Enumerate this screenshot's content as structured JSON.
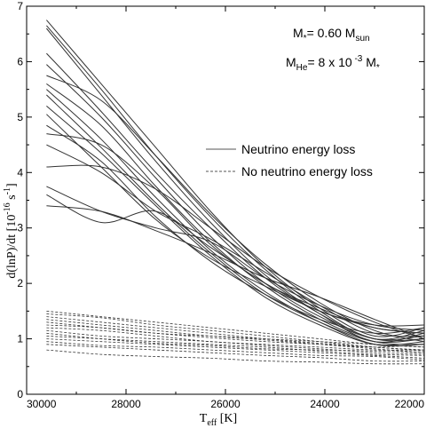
{
  "chart_data": {
    "type": "line",
    "xlabel": "T",
    "xlabel_sub": "eff",
    "xlabel_unit": " [K]",
    "ylabel": "d(lnP)/dt  [10",
    "ylabel_sup": "-16",
    "ylabel_tail": " s",
    "ylabel_sup2": "-1",
    "ylabel_close": "]",
    "xlim": [
      30000,
      22000
    ],
    "ylim": [
      0,
      7
    ],
    "x_ticks": [
      30000,
      28000,
      26000,
      24000,
      22000
    ],
    "y_ticks": [
      0,
      1,
      2,
      3,
      4,
      5,
      6,
      7
    ],
    "annotations": {
      "mass": {
        "text": "M",
        "sub1": "*",
        "mid": "= 0.60 M",
        "sub2": "sun"
      },
      "helium": {
        "text": "M",
        "sub1": "He",
        "mid": "= 8 x 10",
        "sup": " -3",
        "tail": " M",
        "sub2": "*"
      }
    },
    "legend": {
      "placement": "center-right",
      "entries": [
        {
          "label": "Neutrino energy loss",
          "style": "solid"
        },
        {
          "label": "No neutrino energy loss",
          "style": "dashed"
        }
      ]
    },
    "grid": false,
    "line_color": "#333333",
    "series": [
      {
        "style": "solid",
        "x": [
          29600,
          28500,
          27400,
          26300,
          25200,
          24100,
          23000,
          22000
        ],
        "values": [
          6.75,
          5.6,
          4.45,
          3.3,
          2.3,
          1.55,
          1.05,
          1.2
        ]
      },
      {
        "style": "solid",
        "x": [
          29600,
          28500,
          27400,
          26300,
          25200,
          24100,
          23000,
          22000
        ],
        "values": [
          6.65,
          5.5,
          4.3,
          3.2,
          2.25,
          1.5,
          1.0,
          1.15
        ]
      },
      {
        "style": "solid",
        "x": [
          29600,
          28500,
          27400,
          26300,
          25200,
          24100,
          23000,
          22000
        ],
        "values": [
          6.6,
          5.4,
          4.2,
          3.1,
          2.15,
          1.45,
          0.95,
          1.1
        ]
      },
      {
        "style": "solid",
        "x": [
          29600,
          28500,
          27400,
          26300,
          25200,
          24100,
          23000,
          22000
        ],
        "values": [
          6.15,
          5.1,
          4.0,
          3.0,
          2.1,
          1.45,
          1.0,
          1.0
        ]
      },
      {
        "style": "solid",
        "x": [
          29600,
          28500,
          27400,
          26300,
          25200,
          24100,
          23000,
          22000
        ],
        "values": [
          5.95,
          5.0,
          3.9,
          2.85,
          2.0,
          1.4,
          1.0,
          1.05
        ]
      },
      {
        "style": "solid",
        "x": [
          29600,
          28500,
          27400,
          26300,
          25200,
          24100,
          23000,
          22000
        ],
        "values": [
          5.75,
          5.3,
          4.3,
          3.25,
          2.35,
          1.65,
          1.15,
          0.95
        ]
      },
      {
        "style": "solid",
        "x": [
          29600,
          28500,
          27400,
          26300,
          25200,
          24100,
          23000,
          22000
        ],
        "values": [
          5.6,
          4.85,
          3.75,
          2.75,
          1.95,
          1.35,
          0.95,
          0.9
        ]
      },
      {
        "style": "solid",
        "x": [
          29600,
          28500,
          27400,
          26300,
          25200,
          24100,
          23000,
          22000
        ],
        "values": [
          5.5,
          4.6,
          3.55,
          2.6,
          1.85,
          1.3,
          0.9,
          0.9
        ]
      },
      {
        "style": "solid",
        "x": [
          29600,
          28500,
          27400,
          26300,
          25200,
          24100,
          23000,
          22000
        ],
        "values": [
          5.2,
          4.35,
          3.4,
          2.5,
          1.75,
          1.25,
          0.9,
          0.95
        ]
      },
      {
        "style": "solid",
        "x": [
          29600,
          28500,
          27400,
          26300,
          25200,
          24100,
          23000,
          22000
        ],
        "values": [
          4.85,
          4.2,
          3.2,
          2.4,
          1.8,
          1.35,
          1.1,
          1.2
        ]
      },
      {
        "style": "solid",
        "x": [
          29600,
          28500,
          27400,
          26300,
          25200,
          24100,
          23000,
          22000
        ],
        "values": [
          4.7,
          4.5,
          3.7,
          2.7,
          2.0,
          1.55,
          1.2,
          1.1
        ]
      },
      {
        "style": "solid",
        "x": [
          29600,
          28500,
          27400,
          26300,
          25200,
          24100,
          23000,
          22000
        ],
        "values": [
          4.5,
          4.0,
          3.3,
          2.8,
          2.2,
          1.6,
          1.1,
          1.05
        ]
      },
      {
        "style": "solid",
        "x": [
          29600,
          28500,
          27400,
          26300,
          25200,
          24100,
          23000,
          22000
        ],
        "values": [
          4.1,
          4.1,
          3.7,
          3.0,
          2.3,
          1.75,
          1.3,
          1.0
        ]
      },
      {
        "style": "solid",
        "x": [
          29600,
          28500,
          27400,
          26300,
          25200,
          24100,
          23000,
          22000
        ],
        "values": [
          3.75,
          3.3,
          3.0,
          2.75,
          2.1,
          1.6,
          1.25,
          1.15
        ]
      },
      {
        "style": "solid",
        "x": [
          29600,
          28500,
          27400,
          26300,
          25200,
          24100,
          23000,
          22000
        ],
        "values": [
          3.6,
          3.1,
          3.3,
          2.65,
          2.0,
          1.5,
          1.25,
          1.25
        ]
      },
      {
        "style": "solid",
        "x": [
          29600,
          28500,
          27400,
          26300,
          25200,
          24100,
          23000,
          22000
        ],
        "values": [
          3.4,
          3.3,
          2.95,
          2.55,
          2.1,
          1.75,
          1.35,
          1.0
        ]
      },
      {
        "style": "solid",
        "x": [
          29600,
          28500,
          27400,
          26300,
          25200,
          24100,
          23000,
          22000
        ],
        "values": [
          5.05,
          4.1,
          3.15,
          2.45,
          1.95,
          1.5,
          1.2,
          1.1
        ]
      },
      {
        "style": "solid",
        "x": [
          29600,
          28500,
          27400,
          26300,
          25200,
          24100,
          23000,
          22000
        ],
        "values": [
          5.4,
          4.45,
          3.45,
          2.55,
          1.8,
          1.3,
          0.95,
          1.0
        ]
      },
      {
        "style": "dashed",
        "x": [
          29600,
          28500,
          27400,
          26300,
          25200,
          24100,
          23000,
          22000
        ],
        "values": [
          1.5,
          1.4,
          1.3,
          1.2,
          1.1,
          1.0,
          0.9,
          0.85
        ]
      },
      {
        "style": "dashed",
        "x": [
          29600,
          28500,
          27400,
          26300,
          25200,
          24100,
          23000,
          22000
        ],
        "values": [
          1.45,
          1.38,
          1.25,
          1.15,
          1.05,
          0.95,
          0.85,
          0.8
        ]
      },
      {
        "style": "dashed",
        "x": [
          29600,
          28500,
          27400,
          26300,
          25200,
          24100,
          23000,
          22000
        ],
        "values": [
          1.4,
          1.3,
          1.2,
          1.1,
          1.0,
          0.92,
          0.85,
          0.78
        ]
      },
      {
        "style": "dashed",
        "x": [
          29600,
          28500,
          27400,
          26300,
          25200,
          24100,
          23000,
          22000
        ],
        "values": [
          1.35,
          1.25,
          1.15,
          1.05,
          0.98,
          0.9,
          0.82,
          0.75
        ]
      },
      {
        "style": "dashed",
        "x": [
          29600,
          28500,
          27400,
          26300,
          25200,
          24100,
          23000,
          22000
        ],
        "values": [
          1.3,
          1.2,
          1.1,
          1.05,
          1.0,
          0.95,
          0.9,
          0.85
        ]
      },
      {
        "style": "dashed",
        "x": [
          29600,
          28500,
          27400,
          26300,
          25200,
          24100,
          23000,
          22000
        ],
        "values": [
          1.2,
          1.15,
          1.05,
          0.95,
          0.9,
          0.85,
          0.8,
          0.8
        ]
      },
      {
        "style": "dashed",
        "x": [
          29600,
          28500,
          27400,
          26300,
          25200,
          24100,
          23000,
          22000
        ],
        "values": [
          1.15,
          1.05,
          1.0,
          0.95,
          0.88,
          0.82,
          0.75,
          0.72
        ]
      },
      {
        "style": "dashed",
        "x": [
          29600,
          28500,
          27400,
          26300,
          25200,
          24100,
          23000,
          22000
        ],
        "values": [
          1.05,
          1.0,
          0.95,
          0.9,
          0.85,
          0.78,
          0.72,
          0.7
        ]
      },
      {
        "style": "dashed",
        "x": [
          29600,
          28500,
          27400,
          26300,
          25200,
          24100,
          23000,
          22000
        ],
        "values": [
          1.0,
          0.95,
          0.9,
          0.85,
          0.8,
          0.75,
          0.7,
          0.65
        ]
      },
      {
        "style": "dashed",
        "x": [
          29600,
          28500,
          27400,
          26300,
          25200,
          24100,
          23000,
          22000
        ],
        "values": [
          0.95,
          0.88,
          0.85,
          0.8,
          0.75,
          0.7,
          0.68,
          0.62
        ]
      },
      {
        "style": "dashed",
        "x": [
          29600,
          28500,
          27400,
          26300,
          25200,
          24100,
          23000,
          22000
        ],
        "values": [
          0.9,
          0.85,
          0.8,
          0.75,
          0.7,
          0.66,
          0.6,
          0.6
        ]
      },
      {
        "style": "dashed",
        "x": [
          29600,
          28500,
          27400,
          26300,
          25200,
          24100,
          23000,
          22000
        ],
        "values": [
          0.8,
          0.72,
          0.68,
          0.65,
          0.6,
          0.58,
          0.55,
          0.55
        ]
      },
      {
        "style": "dashed",
        "x": [
          29600,
          28500,
          27400,
          26300,
          25200,
          24100,
          23000,
          22000
        ],
        "values": [
          1.25,
          1.2,
          1.1,
          1.02,
          0.95,
          0.9,
          0.85,
          0.9
        ]
      },
      {
        "style": "dashed",
        "x": [
          29600,
          28500,
          27400,
          26300,
          25200,
          24100,
          23000,
          22000
        ],
        "values": [
          1.1,
          1.0,
          0.92,
          0.88,
          0.82,
          0.8,
          0.78,
          0.75
        ]
      }
    ]
  }
}
